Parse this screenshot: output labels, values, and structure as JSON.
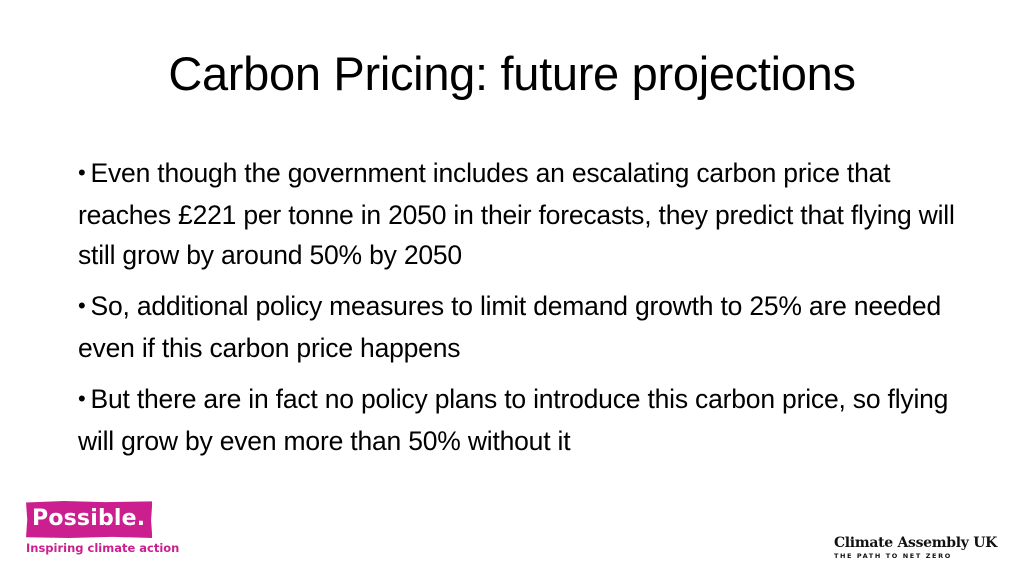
{
  "slide": {
    "title": "Carbon Pricing: future projections",
    "bullet_symbol": "•",
    "bullets": [
      "Even though the government includes an escalating carbon price that reaches £221 per tonne in 2050 in their forecasts, they predict that flying will still grow by around 50% by 2050",
      "So, additional policy measures to limit demand growth to 25% are needed even if this carbon price happens",
      "But there are in fact no policy plans to introduce this carbon price, so flying will grow by even more than 50% without it"
    ]
  },
  "logos": {
    "possible": {
      "name": "Possible.",
      "tagline": "Inspiring climate action",
      "color": "#cc1f8f"
    },
    "climate_assembly": {
      "name": "Climate Assembly UK",
      "tagline": "THE PATH TO NET ZERO"
    }
  }
}
